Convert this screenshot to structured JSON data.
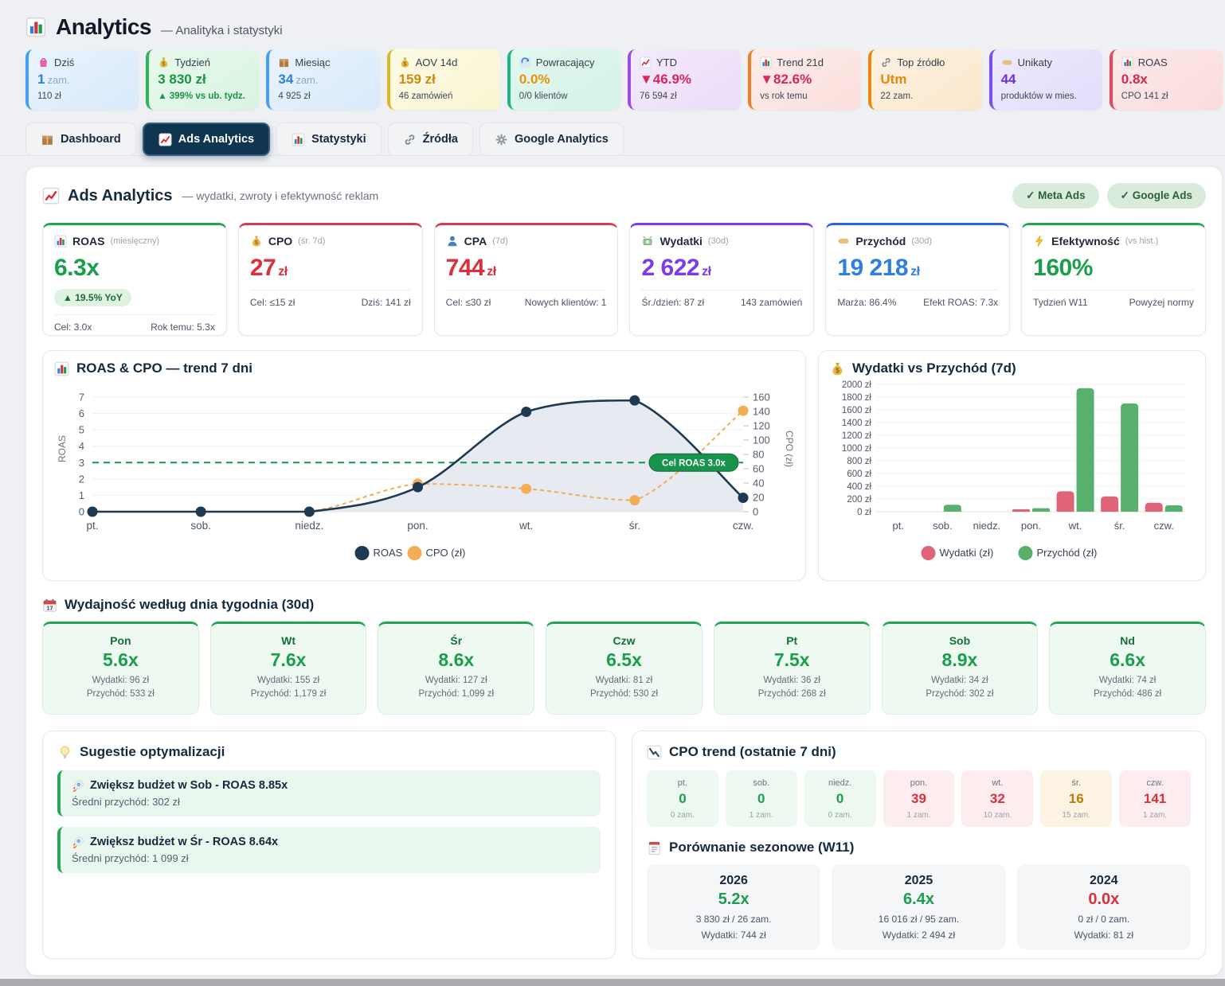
{
  "app": {
    "title": "Analytics",
    "subtitle": "— Analityka i statystyki",
    "icon": "bar-chart"
  },
  "kpi_chips": [
    {
      "icon": "shopping-bag",
      "label": "Dziś",
      "value": "1",
      "unit": "zam.",
      "sub": "110 zł",
      "accent": "#42a0f5"
    },
    {
      "icon": "money-bag",
      "label": "Tydzień",
      "value": "3 830 zł",
      "unit": "",
      "sub": "▲ 399% vs ub. tydz.",
      "accent": "#2cb55b"
    },
    {
      "icon": "package",
      "label": "Miesiąc",
      "value": "34",
      "unit": "zam.",
      "sub": "4 925 zł",
      "accent": "#42a0f5"
    },
    {
      "icon": "money-bag",
      "label": "AOV 14d",
      "value": "159 zł",
      "unit": "",
      "sub": "46 zamówień",
      "accent": "#d9b929"
    },
    {
      "icon": "refresh",
      "label": "Powracający",
      "value": "0.0%",
      "unit": "",
      "sub": "0/0 klientów",
      "accent": "#1db584"
    },
    {
      "icon": "chart-up",
      "label": "YTD",
      "value": "▼46.9%",
      "unit": "",
      "sub": "76 594 zł",
      "accent": "#9b4fe0"
    },
    {
      "icon": "bar-chart",
      "label": "Trend 21d",
      "value": "▼82.6%",
      "unit": "",
      "sub": "vs rok temu",
      "accent": "#ef7e24"
    },
    {
      "icon": "link",
      "label": "Top źródło",
      "value": "Utm",
      "unit": "",
      "sub": "22 zam.",
      "accent": "#e8890c"
    },
    {
      "icon": "tag",
      "label": "Unikaty",
      "value": "44",
      "unit": "",
      "sub": "produktów w mies.",
      "accent": "#7a4ff0"
    },
    {
      "icon": "bar-chart",
      "label": "ROAS",
      "value": "0.8x",
      "unit": "",
      "sub": "CPO 141 zł",
      "accent": "#e8465c"
    }
  ],
  "tabs": [
    {
      "icon": "package",
      "label": "Dashboard",
      "active": false
    },
    {
      "icon": "chart-up",
      "label": "Ads Analytics",
      "active": true
    },
    {
      "icon": "bar-chart",
      "label": "Statystyki",
      "active": false
    },
    {
      "icon": "link",
      "label": "Źródła",
      "active": false
    },
    {
      "icon": "gear",
      "label": "Google Analytics",
      "active": false
    }
  ],
  "panel": {
    "icon": "chart-up",
    "title": "Ads Analytics",
    "desc": "— wydatki, zwroty i efektywność reklam",
    "pills": [
      "✓ Meta Ads",
      "✓ Google Ads"
    ]
  },
  "kpi_cards": [
    {
      "icon": "bar-chart",
      "name": "ROAS",
      "qualifier": "(miesięczny)",
      "value": "6.3x",
      "suffix": "",
      "badge": "▲ 19.5% YoY",
      "foot_left": "Cel: 3.0x",
      "foot_right": "Rok temu: 5.3x",
      "accent": "#23a552"
    },
    {
      "icon": "money-bag",
      "name": "CPO",
      "qualifier": "(śr. 7d)",
      "value": "27",
      "suffix": "zł",
      "foot_left": "Cel: ≤15 zł",
      "foot_right": "Dziś: 141 zł",
      "accent": "#d63c4e"
    },
    {
      "icon": "person",
      "name": "CPA",
      "qualifier": "(7d)",
      "value": "744",
      "suffix": "zł",
      "foot_left": "Cel: ≤30 zł",
      "foot_right": "Nowych klientów: 1",
      "accent": "#d63c4e"
    },
    {
      "icon": "money-fly",
      "name": "Wydatki",
      "qualifier": "(30d)",
      "value": "2 622",
      "suffix": "zł",
      "foot_left": "Śr./dzień: 87 zł",
      "foot_right": "143 zamówień",
      "accent": "#7c3aed"
    },
    {
      "icon": "tag",
      "name": "Przychód",
      "qualifier": "(30d)",
      "value": "19 218",
      "suffix": "zł",
      "foot_left": "Marża: 86.4%",
      "foot_right": "Efekt ROAS: 7.3x",
      "accent": "#2563eb"
    },
    {
      "icon": "lightning",
      "name": "Efektywność",
      "qualifier": "(vs hist.)",
      "value": "160%",
      "suffix": "",
      "foot_left": "Tydzień W11",
      "foot_right": "Powyżej normy",
      "accent": "#23a552"
    }
  ],
  "chart_data": [
    {
      "type": "line",
      "title": "ROAS & CPO — trend 7 dni",
      "icon": "bar-chart",
      "x": [
        "pt.",
        "sob.",
        "niedz.",
        "pon.",
        "wt.",
        "śr.",
        "czw."
      ],
      "series": [
        {
          "name": "ROAS",
          "axis": "left",
          "color": "#1e3a52",
          "style": "solid",
          "fill": true,
          "values": [
            0,
            0,
            0,
            1.5,
            6.1,
            6.8,
            0.85
          ]
        },
        {
          "name": "CPO (zł)",
          "axis": "right",
          "color": "#f2ad55",
          "style": "dashed",
          "values": [
            0,
            0,
            0,
            39,
            32,
            16,
            141
          ]
        }
      ],
      "left_axis": {
        "label": "ROAS",
        "min": 0,
        "max": 7,
        "ticks": [
          0,
          1,
          2,
          3,
          4,
          5,
          6,
          7
        ]
      },
      "right_axis": {
        "label": "CPO (zł)",
        "min": 0,
        "max": 160,
        "ticks": [
          0,
          20,
          40,
          60,
          80,
          100,
          120,
          140,
          160
        ]
      },
      "target_line": {
        "value": 3,
        "label": "Cel ROAS 3.0x",
        "color": "#17934b"
      },
      "legend_position": "bottom"
    },
    {
      "type": "bar",
      "title": "Wydatki vs Przychód (7d)",
      "icon": "money-bag",
      "categories": [
        "pt.",
        "sob.",
        "niedz.",
        "pon.",
        "wt.",
        "śr.",
        "czw."
      ],
      "series": [
        {
          "name": "Wydatki (zł)",
          "color": "#e06478",
          "values": [
            0,
            0,
            0,
            39,
            320,
            240,
            141
          ]
        },
        {
          "name": "Przychód (zł)",
          "color": "#57b06c",
          "values": [
            0,
            110,
            0,
            55,
            1940,
            1700,
            100
          ]
        }
      ],
      "ylim": [
        0,
        2000
      ],
      "ytick_step": 200,
      "ytick_suffix": " zł",
      "legend_position": "bottom"
    }
  ],
  "weekday": {
    "icon": "calendar",
    "title": "Wydajność według dnia tygodnia (30d)",
    "cards": [
      {
        "day": "Pon",
        "roas": "5.6x",
        "wydatki": "Wydatki: 96 zł",
        "przychod": "Przychód: 533 zł"
      },
      {
        "day": "Wt",
        "roas": "7.6x",
        "wydatki": "Wydatki: 155 zł",
        "przychod": "Przychód: 1,179 zł"
      },
      {
        "day": "Śr",
        "roas": "8.6x",
        "wydatki": "Wydatki: 127 zł",
        "przychod": "Przychód: 1,099 zł"
      },
      {
        "day": "Czw",
        "roas": "6.5x",
        "wydatki": "Wydatki: 81 zł",
        "przychod": "Przychód: 530 zł"
      },
      {
        "day": "Pt",
        "roas": "7.5x",
        "wydatki": "Wydatki: 36 zł",
        "przychod": "Przychód: 268 zł"
      },
      {
        "day": "Sob",
        "roas": "8.9x",
        "wydatki": "Wydatki: 34 zł",
        "przychod": "Przychód: 302 zł"
      },
      {
        "day": "Nd",
        "roas": "6.6x",
        "wydatki": "Wydatki: 74 zł",
        "przychod": "Przychód: 486 zł"
      }
    ]
  },
  "suggestions": {
    "icon": "bulb",
    "title": "Sugestie optymalizacji",
    "items": [
      {
        "icon": "rocket",
        "title": "Zwiększ budżet w Sob - ROAS 8.85x",
        "sub": "Średni przychód: 302 zł"
      },
      {
        "icon": "rocket",
        "title": "Zwiększ budżet w Śr - ROAS 8.64x",
        "sub": "Średni przychód: 1 099 zł"
      }
    ]
  },
  "cpo_trend": {
    "icon": "chart-down",
    "title": "CPO trend (ostatnie 7 dni)",
    "days": [
      {
        "day": "pt.",
        "value": "0",
        "orders": "0 zam.",
        "tone": "green"
      },
      {
        "day": "sob.",
        "value": "0",
        "orders": "1 zam.",
        "tone": "green"
      },
      {
        "day": "niedz.",
        "value": "0",
        "orders": "0 zam.",
        "tone": "green"
      },
      {
        "day": "pon.",
        "value": "39",
        "orders": "1 zam.",
        "tone": "red"
      },
      {
        "day": "wt.",
        "value": "32",
        "orders": "10 zam.",
        "tone": "red"
      },
      {
        "day": "śr.",
        "value": "16",
        "orders": "15 zam.",
        "tone": "amber"
      },
      {
        "day": "czw.",
        "value": "141",
        "orders": "1 zam.",
        "tone": "red"
      }
    ]
  },
  "seasonal": {
    "icon": "memo",
    "title": "Porównanie sezonowe (W11)",
    "cards": [
      {
        "year": "2026",
        "roas": "5.2x",
        "tone": "green",
        "line1": "3 830 zł / 26 zam.",
        "line2": "Wydatki: 744 zł"
      },
      {
        "year": "2025",
        "roas": "6.4x",
        "tone": "green",
        "line1": "16 016 zł / 95 zam.",
        "line2": "Wydatki: 2 494 zł"
      },
      {
        "year": "2024",
        "roas": "0.0x",
        "tone": "red",
        "line1": "0 zł / 0 zam.",
        "line2": "Wydatki: 81 zł"
      }
    ]
  }
}
